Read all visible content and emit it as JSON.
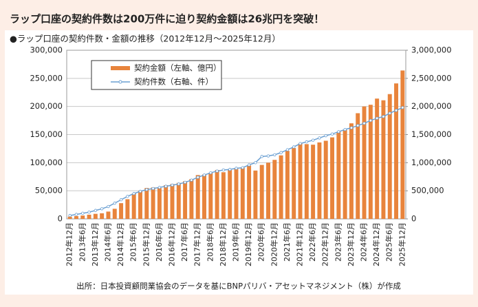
{
  "chart_data": {
    "type": "bar-line",
    "title": "ラップ口座の契約件数は200万件に迫り契約金額は26兆円を突破！",
    "subtitle": "●ラップ口座の契約件数・金額の推移（2012年12月～2025年12月）",
    "source": "出所：日本投資顧問業協会のデータを基にBNPパリバ・アセットマネジメント（株）が作成",
    "categories": [
      "2012年12月",
      null,
      "2013年6月",
      null,
      "2013年12月",
      null,
      "2014年6月",
      null,
      "2014年12月",
      null,
      "2015年6月",
      null,
      "2015年12月",
      null,
      "2016年6月",
      null,
      "2016年12月",
      null,
      "2017年6月",
      null,
      "2017年12月",
      null,
      "2018年6月",
      null,
      "2018年12月",
      null,
      "2019年6月",
      null,
      "2019年12月",
      null,
      "2020年6月",
      null,
      "2020年12月",
      null,
      "2021年6月",
      null,
      "2021年12月",
      null,
      "2022年6月",
      null,
      "2022年12月",
      null,
      "2023年6月",
      null,
      "2023年12月",
      null,
      "2024年6月",
      null,
      "2024年12月",
      null,
      "2025年6月",
      null,
      "2025年12月"
    ],
    "series": [
      {
        "name": "契約金額（左軸、億円）",
        "type": "bar",
        "color": "#e8843c",
        "values": [
          4000,
          5000,
          6000,
          7500,
          9000,
          10000,
          13000,
          18000,
          28000,
          35000,
          45000,
          50000,
          55000,
          56000,
          55000,
          60000,
          62000,
          64000,
          67000,
          71000,
          78000,
          79000,
          82000,
          87000,
          83000,
          87000,
          89000,
          91000,
          95000,
          86000,
          96000,
          100000,
          105000,
          113000,
          121000,
          126000,
          134000,
          133000,
          132000,
          136000,
          139000,
          145000,
          155000,
          158000,
          170000,
          188000,
          200000,
          203000,
          214000,
          211000,
          222000,
          241000,
          264000
        ]
      },
      {
        "name": "契約件数（右軸、件）",
        "type": "line",
        "axis": "y2",
        "color": "#6a9fd2",
        "values": [
          60000,
          80000,
          100000,
          120000,
          150000,
          180000,
          220000,
          280000,
          340000,
          400000,
          450000,
          490000,
          520000,
          540000,
          560000,
          580000,
          600000,
          620000,
          650000,
          690000,
          740000,
          780000,
          820000,
          850000,
          870000,
          880000,
          900000,
          910000,
          960000,
          1000000,
          1110000,
          1120000,
          1140000,
          1180000,
          1230000,
          1280000,
          1340000,
          1370000,
          1400000,
          1440000,
          1480000,
          1510000,
          1550000,
          1590000,
          1620000,
          1660000,
          1700000,
          1750000,
          1790000,
          1820000,
          1880000,
          1930000,
          1980000
        ]
      }
    ],
    "ylim": [
      0,
      300000
    ],
    "yticks": [
      0,
      {
        "value": 50000,
        "label": "50,000"
      },
      {
        "value": 100000,
        "label": "100,000"
      },
      {
        "value": 150000,
        "label": "150,000"
      },
      {
        "value": 200000,
        "label": "200,000"
      },
      {
        "value": 250000,
        "label": "250,000"
      },
      {
        "value": 300000,
        "label": "300,000"
      }
    ],
    "y2lim": [
      0,
      3000000
    ],
    "y2ticks": [
      0,
      {
        "value": 500000,
        "label": "500,000"
      },
      {
        "value": 1000000,
        "label": "1,000,000"
      },
      {
        "value": 1500000,
        "label": "1,500,000"
      },
      {
        "value": 2000000,
        "label": "2,000,000"
      },
      {
        "value": 2500000,
        "label": "2,500,000"
      },
      {
        "value": 3000000,
        "label": "3,000,000"
      }
    ],
    "grid": true,
    "legend": "upper left"
  }
}
